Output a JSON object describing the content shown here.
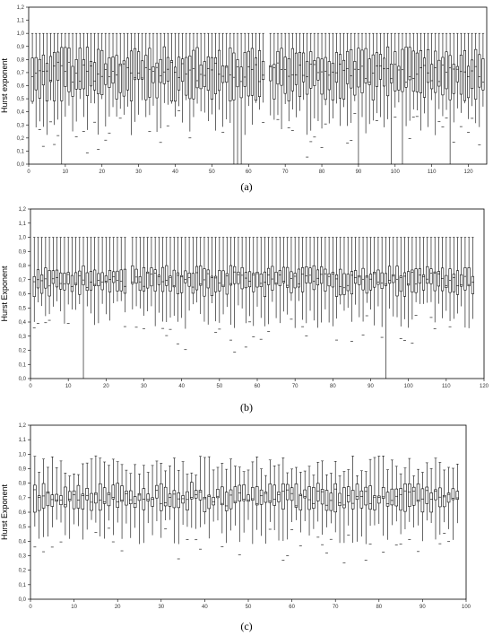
{
  "chart_data": [
    {
      "type": "box",
      "panel": "a",
      "caption": "(a)",
      "ylabel": "Hurst exponent",
      "xlabel": "",
      "ylim": [
        0,
        1.2
      ],
      "xlim": [
        0,
        125
      ],
      "yticks": [
        "0,0",
        "0,1",
        "0,2",
        "0,3",
        "0,4",
        "0,5",
        "0,6",
        "0,7",
        "0,8",
        "0,9",
        "1,0",
        "1,1",
        "1,2"
      ],
      "xticks": [
        "0",
        "10",
        "20",
        "30",
        "40",
        "50",
        "60",
        "70",
        "80",
        "90",
        "100",
        "110",
        "120"
      ],
      "box_count": 124,
      "gap_at": 65,
      "median_range": [
        0.62,
        0.78
      ],
      "box_low_range": [
        0.48,
        0.65
      ],
      "box_high_range": [
        0.74,
        0.9
      ],
      "whisker_high": 1.0,
      "whisker_low_range": [
        0.22,
        0.5
      ],
      "outliers_to_zero": [
        9,
        56,
        57,
        58,
        90,
        99,
        102,
        115
      ]
    },
    {
      "type": "box",
      "panel": "b",
      "caption": "(b)",
      "ylabel": "Hurst Exponent",
      "xlabel": "",
      "ylim": [
        0,
        1.2
      ],
      "xlim": [
        0,
        120
      ],
      "yticks": [
        "0,0",
        "0,1",
        "0,2",
        "0,3",
        "0,4",
        "0,5",
        "0,6",
        "0,7",
        "0,8",
        "0,9",
        "1,0",
        "1,1",
        "1,2"
      ],
      "xticks": [
        "0",
        "10",
        "20",
        "30",
        "40",
        "50",
        "60",
        "70",
        "80",
        "90",
        "100",
        "110",
        "120"
      ],
      "box_count": 117,
      "gap_at": 26,
      "median_range": [
        0.64,
        0.76
      ],
      "box_low_range": [
        0.58,
        0.68
      ],
      "box_high_range": [
        0.72,
        0.8
      ],
      "whisker_high": 1.0,
      "whisker_low_range": [
        0.35,
        0.55
      ],
      "outliers_to_zero": [
        14,
        94
      ]
    },
    {
      "type": "box",
      "panel": "c",
      "caption": "(c)",
      "ylabel": "Hurst Exponent",
      "xlabel": "",
      "ylim": [
        0,
        1.2
      ],
      "xlim": [
        0,
        100
      ],
      "yticks": [
        "0,0",
        "0,1",
        "0,2",
        "0,3",
        "0,4",
        "0,5",
        "0,6",
        "0,7",
        "0,8",
        "0,9",
        "1,0",
        "1,1",
        "1,2"
      ],
      "xticks": [
        "0",
        "10",
        "20",
        "30",
        "40",
        "50",
        "60",
        "70",
        "80",
        "90",
        "100"
      ],
      "box_count": 98,
      "gap_at": -1,
      "median_range": [
        0.64,
        0.76
      ],
      "box_low_range": [
        0.6,
        0.7
      ],
      "box_high_range": [
        0.7,
        0.8
      ],
      "whisker_high_range": [
        0.85,
        0.99
      ],
      "whisker_low_range": [
        0.38,
        0.55
      ],
      "outliers_to_zero": []
    }
  ]
}
